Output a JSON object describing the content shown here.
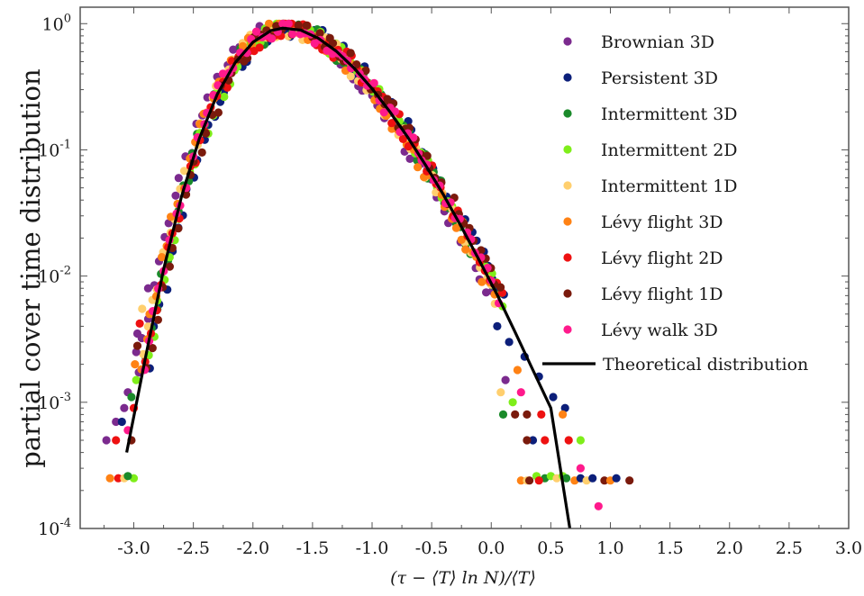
{
  "chart_data": {
    "type": "scatter",
    "title": "",
    "xlabel": "(τ − ⟨T⟩ ln N)/⟨T⟩",
    "ylabel": "partial cover time distribution",
    "xlim": [
      -3.45,
      3.0
    ],
    "ylim": [
      0.0001,
      1.35
    ],
    "yscale": "log",
    "grid": false,
    "legend_position": "top-right",
    "x_ticks": [
      {
        "value": -3.0,
        "label": "-3.0"
      },
      {
        "value": -2.5,
        "label": "-2.5"
      },
      {
        "value": -2.0,
        "label": "-2.0"
      },
      {
        "value": -1.5,
        "label": "-1.5"
      },
      {
        "value": -1.0,
        "label": "-1.0"
      },
      {
        "value": -0.5,
        "label": "-0.5"
      },
      {
        "value": 0.0,
        "label": "0.0"
      },
      {
        "value": 0.5,
        "label": "0.5"
      },
      {
        "value": 1.0,
        "label": "1.0"
      },
      {
        "value": 1.5,
        "label": "1.5"
      },
      {
        "value": 2.0,
        "label": "2.0"
      },
      {
        "value": 2.5,
        "label": "2.5"
      },
      {
        "value": 3.0,
        "label": "3.0"
      }
    ],
    "y_ticks": [
      {
        "value": 1,
        "base": "10",
        "exp": "0"
      },
      {
        "value": 0.1,
        "base": "10",
        "exp": "-1"
      },
      {
        "value": 0.01,
        "base": "10",
        "exp": "-2"
      },
      {
        "value": 0.001,
        "base": "10",
        "exp": "-3"
      },
      {
        "value": 0.0001,
        "base": "10",
        "exp": "-4"
      }
    ],
    "series": [
      {
        "name": "Brownian 3D",
        "color": "#7b2a8e",
        "shift": -0.05
      },
      {
        "name": "Persistent 3D",
        "color": "#0c1f7a",
        "shift": 0.04
      },
      {
        "name": "Intermittent 3D",
        "color": "#1a8a2a",
        "shift": 0.0
      },
      {
        "name": "Intermittent 2D",
        "color": "#7fee1a",
        "shift": 0.02
      },
      {
        "name": "Intermittent 1D",
        "color": "#ffcf6e",
        "shift": -0.02
      },
      {
        "name": "Lévy flight 3D",
        "color": "#ff8214",
        "shift": -0.03
      },
      {
        "name": "Lévy flight 2D",
        "color": "#ee1111",
        "shift": 0.01
      },
      {
        "name": "Lévy flight 1D",
        "color": "#7a1a0c",
        "shift": 0.03
      },
      {
        "name": "Lévy walk 3D",
        "color": "#ff1a8c",
        "shift": 0.0
      }
    ],
    "theory": {
      "name": "Theoretical distribution",
      "color": "#000000",
      "x": [
        -3.06,
        -2.9,
        -2.75,
        -2.6,
        -2.45,
        -2.3,
        -2.15,
        -2.0,
        -1.85,
        -1.75,
        -1.6,
        -1.45,
        -1.3,
        -1.15,
        -1.0,
        -0.85,
        -0.7,
        -0.55,
        -0.4,
        -0.25,
        -0.1,
        0.05,
        0.2,
        0.35,
        0.5,
        0.66
      ],
      "y": [
        0.0004,
        0.0023,
        0.0113,
        0.0425,
        0.1227,
        0.2755,
        0.4895,
        0.7129,
        0.8806,
        0.92,
        0.8895,
        0.765,
        0.6047,
        0.4426,
        0.3055,
        0.2003,
        0.1255,
        0.0755,
        0.0438,
        0.0245,
        0.0133,
        0.0071,
        0.0036,
        0.0018,
        0.0009,
        0.0001
      ]
    },
    "tail_points": [
      {
        "series": 0,
        "x": -3.23,
        "y": 0.0005
      },
      {
        "series": 0,
        "x": -3.15,
        "y": 0.0007
      },
      {
        "series": 0,
        "x": -3.08,
        "y": 0.0009
      },
      {
        "series": 0,
        "x": -3.05,
        "y": 0.0012
      },
      {
        "series": 0,
        "x": -2.98,
        "y": 0.0025
      },
      {
        "series": 0,
        "x": -2.97,
        "y": 0.0035
      },
      {
        "series": 0,
        "x": -2.88,
        "y": 0.008
      },
      {
        "series": 5,
        "x": -3.2,
        "y": 0.00025
      },
      {
        "series": 6,
        "x": -3.13,
        "y": 0.00025
      },
      {
        "series": 4,
        "x": -3.08,
        "y": 0.00025
      },
      {
        "series": 3,
        "x": -3.0,
        "y": 0.00025
      },
      {
        "series": 2,
        "x": -3.05,
        "y": 0.00026
      },
      {
        "series": 6,
        "x": -3.15,
        "y": 0.0005
      },
      {
        "series": 7,
        "x": -3.02,
        "y": 0.0005
      },
      {
        "series": 8,
        "x": -3.05,
        "y": 0.0006
      },
      {
        "series": 1,
        "x": -3.1,
        "y": 0.0007
      },
      {
        "series": 6,
        "x": -3.0,
        "y": 0.0009
      },
      {
        "series": 2,
        "x": -3.02,
        "y": 0.0011
      },
      {
        "series": 3,
        "x": -2.98,
        "y": 0.0015
      },
      {
        "series": 5,
        "x": -2.99,
        "y": 0.002
      },
      {
        "series": 7,
        "x": -2.97,
        "y": 0.0028
      },
      {
        "series": 6,
        "x": -2.95,
        "y": 0.0042
      },
      {
        "series": 4,
        "x": -2.93,
        "y": 0.0055
      },
      {
        "series": 1,
        "x": 0.05,
        "y": 0.004
      },
      {
        "series": 1,
        "x": 0.15,
        "y": 0.003
      },
      {
        "series": 1,
        "x": 0.28,
        "y": 0.0023
      },
      {
        "series": 1,
        "x": 0.4,
        "y": 0.0016
      },
      {
        "series": 1,
        "x": 0.52,
        "y": 0.0011
      },
      {
        "series": 1,
        "x": 0.62,
        "y": 0.0009
      },
      {
        "series": 7,
        "x": 0.2,
        "y": 0.0008
      },
      {
        "series": 7,
        "x": 0.3,
        "y": 0.0008
      },
      {
        "series": 6,
        "x": 0.42,
        "y": 0.0008
      },
      {
        "series": 5,
        "x": 0.6,
        "y": 0.0008
      },
      {
        "series": 6,
        "x": 0.45,
        "y": 0.0005
      },
      {
        "series": 1,
        "x": 0.35,
        "y": 0.0005
      },
      {
        "series": 6,
        "x": 0.65,
        "y": 0.0005
      },
      {
        "series": 3,
        "x": 0.75,
        "y": 0.0005
      },
      {
        "series": 7,
        "x": 0.3,
        "y": 0.0005
      },
      {
        "series": 2,
        "x": 0.1,
        "y": 0.0008
      },
      {
        "series": 4,
        "x": 0.08,
        "y": 0.0012
      },
      {
        "series": 3,
        "x": 0.18,
        "y": 0.001
      },
      {
        "series": 8,
        "x": 0.25,
        "y": 0.0012
      },
      {
        "series": 0,
        "x": 0.12,
        "y": 0.0015
      },
      {
        "series": 5,
        "x": 0.22,
        "y": 0.0018
      },
      {
        "series": 5,
        "x": 0.25,
        "y": 0.00024
      },
      {
        "series": 4,
        "x": 0.3,
        "y": 0.00024
      },
      {
        "series": 3,
        "x": 0.38,
        "y": 0.00026
      },
      {
        "series": 2,
        "x": 0.45,
        "y": 0.00025
      },
      {
        "series": 3,
        "x": 0.5,
        "y": 0.00026
      },
      {
        "series": 4,
        "x": 0.55,
        "y": 0.00025
      },
      {
        "series": 3,
        "x": 0.6,
        "y": 0.00026
      },
      {
        "series": 2,
        "x": 0.63,
        "y": 0.00025
      },
      {
        "series": 5,
        "x": 0.7,
        "y": 0.00024
      },
      {
        "series": 1,
        "x": 0.75,
        "y": 0.00025
      },
      {
        "series": 4,
        "x": 0.8,
        "y": 0.00024
      },
      {
        "series": 1,
        "x": 0.85,
        "y": 0.00025
      },
      {
        "series": 7,
        "x": 0.95,
        "y": 0.00024
      },
      {
        "series": 5,
        "x": 1.0,
        "y": 0.00024
      },
      {
        "series": 1,
        "x": 1.05,
        "y": 0.00025
      },
      {
        "series": 7,
        "x": 1.16,
        "y": 0.00024
      },
      {
        "series": 6,
        "x": 0.4,
        "y": 0.00024
      },
      {
        "series": 7,
        "x": 0.32,
        "y": 0.00024
      },
      {
        "series": 8,
        "x": 0.75,
        "y": 0.0003
      },
      {
        "series": 8,
        "x": 0.9,
        "y": 0.00015
      }
    ]
  },
  "legend": {
    "items": [
      {
        "label": "Brownian 3D",
        "color": "#7b2a8e"
      },
      {
        "label": "Persistent 3D",
        "color": "#0c1f7a"
      },
      {
        "label": "Intermittent 3D",
        "color": "#1a8a2a"
      },
      {
        "label": "Intermittent 2D",
        "color": "#7fee1a"
      },
      {
        "label": "Intermittent 1D",
        "color": "#ffcf6e"
      },
      {
        "label": "Lévy flight 3D",
        "color": "#ff8214"
      },
      {
        "label": "Lévy flight 2D",
        "color": "#ee1111"
      },
      {
        "label": "Lévy flight 1D",
        "color": "#7a1a0c"
      },
      {
        "label": "Lévy walk 3D",
        "color": "#ff1a8c"
      }
    ],
    "theory_label": "Theoretical distribution"
  }
}
